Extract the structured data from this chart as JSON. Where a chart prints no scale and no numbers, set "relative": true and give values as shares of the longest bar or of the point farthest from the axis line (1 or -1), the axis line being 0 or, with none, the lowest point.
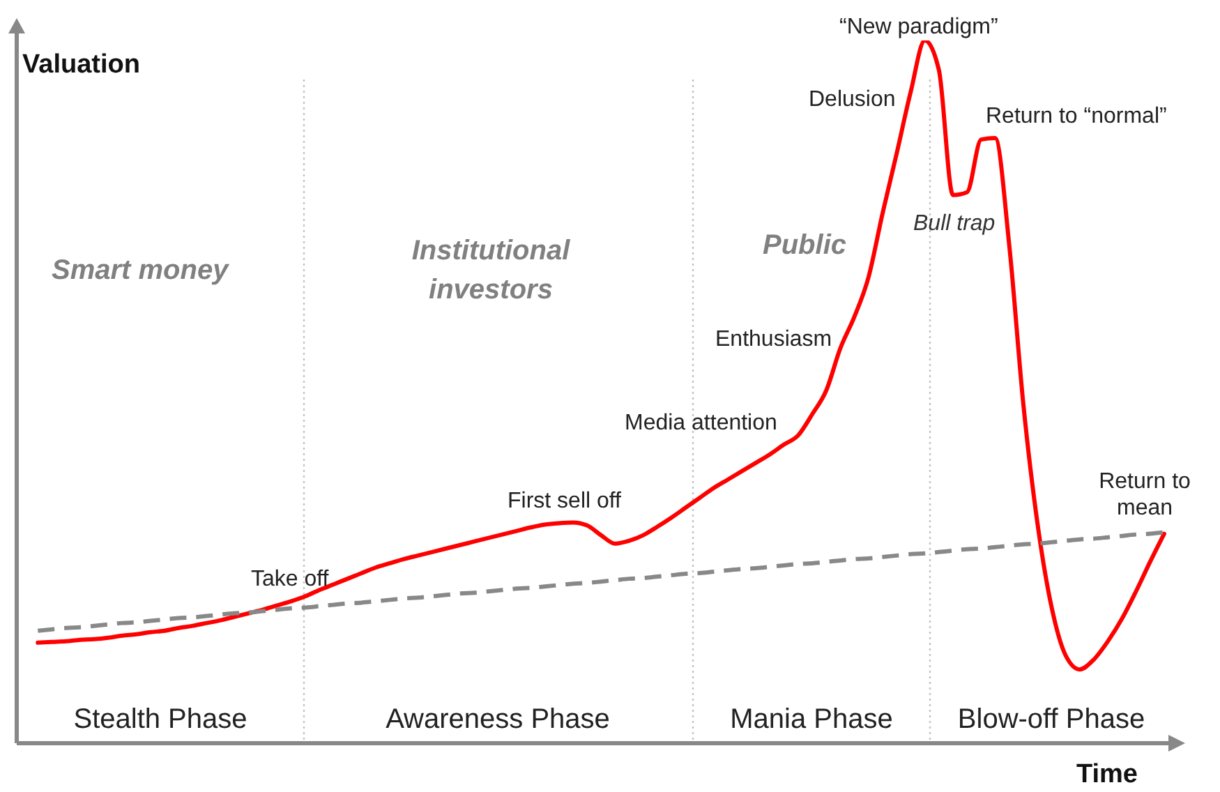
{
  "chart_data": {
    "type": "line",
    "xlabel": "Time",
    "ylabel": "Valuation",
    "relative": true,
    "categories": [
      null,
      null,
      null,
      null,
      null,
      null,
      null,
      null,
      null,
      null,
      null,
      null,
      null,
      null,
      null,
      null,
      null,
      null,
      null,
      null,
      null,
      null,
      null,
      null,
      null,
      null,
      null,
      null,
      null,
      null,
      null,
      null,
      null,
      null,
      null,
      null,
      null,
      null,
      null,
      null,
      null,
      null,
      null,
      null,
      null,
      null,
      null,
      null,
      null,
      null,
      null,
      null,
      null,
      null,
      null,
      null,
      null,
      null,
      null,
      null,
      null,
      null,
      null,
      null,
      null,
      null,
      null,
      null,
      null,
      null,
      null,
      null,
      null,
      null,
      null,
      null,
      null,
      null,
      null,
      null,
      null
    ],
    "series": [
      {
        "color": "#ff0000",
        "values": [
          0.143,
          0.144,
          0.145,
          0.147,
          0.148,
          0.15,
          0.153,
          0.155,
          0.158,
          0.16,
          0.164,
          0.167,
          0.171,
          0.175,
          0.18,
          0.185,
          0.19,
          0.196,
          0.202,
          0.209,
          0.218,
          0.226,
          0.234,
          0.242,
          0.25,
          0.256,
          0.262,
          0.267,
          0.272,
          0.277,
          0.282,
          0.287,
          0.292,
          0.297,
          0.302,
          0.307,
          0.311,
          0.313,
          0.314,
          0.31,
          0.296,
          0.284,
          0.288,
          0.296,
          0.308,
          0.321,
          0.335,
          0.349,
          0.363,
          0.375,
          0.387,
          0.399,
          0.411,
          0.425,
          0.438,
          0.468,
          0.502,
          0.562,
          0.607,
          0.663,
          0.754,
          0.839,
          0.927,
          1,
          0.958,
          0.78,
          0.784,
          0.859,
          0.861,
          0.708,
          0.482,
          0.313,
          0.194,
          0.125,
          0.105,
          0.119,
          0.145,
          0.177,
          0.216,
          0.258,
          0.298
        ]
      },
      {
        "color": "#888888",
        "line_style": "dashed",
        "values": [
          0.16,
          0.162,
          0.164,
          0.165,
          0.167,
          0.169,
          0.171,
          0.172,
          0.174,
          0.176,
          0.178,
          0.179,
          0.181,
          0.183,
          0.185,
          0.186,
          0.188,
          0.19,
          0.192,
          0.193,
          0.195,
          0.197,
          0.199,
          0.2,
          0.202,
          0.204,
          0.206,
          0.207,
          0.209,
          0.211,
          0.213,
          0.214,
          0.216,
          0.218,
          0.22,
          0.221,
          0.223,
          0.225,
          0.227,
          0.228,
          0.23,
          0.232,
          0.234,
          0.235,
          0.237,
          0.239,
          0.241,
          0.242,
          0.244,
          0.246,
          0.248,
          0.249,
          0.251,
          0.253,
          0.255,
          0.256,
          0.258,
          0.26,
          0.262,
          0.263,
          0.265,
          0.267,
          0.269,
          0.27,
          0.272,
          0.274,
          0.276,
          0.277,
          0.279,
          0.281,
          0.283,
          0.284,
          0.286,
          0.288,
          0.29,
          0.291,
          0.293,
          0.295,
          0.297,
          0.298,
          0.3
        ]
      }
    ],
    "annotations": [
      "Smart money",
      "Institutional investors",
      "Public",
      "Take off",
      "First sell off",
      "Media attention",
      "Enthusiasm",
      "Delusion",
      "“New paradigm”",
      "Return to “normal”",
      "Bull trap",
      "Return to mean",
      "Stealth Phase",
      "Awareness Phase",
      "Mania Phase",
      "Blow-off Phase"
    ]
  }
}
